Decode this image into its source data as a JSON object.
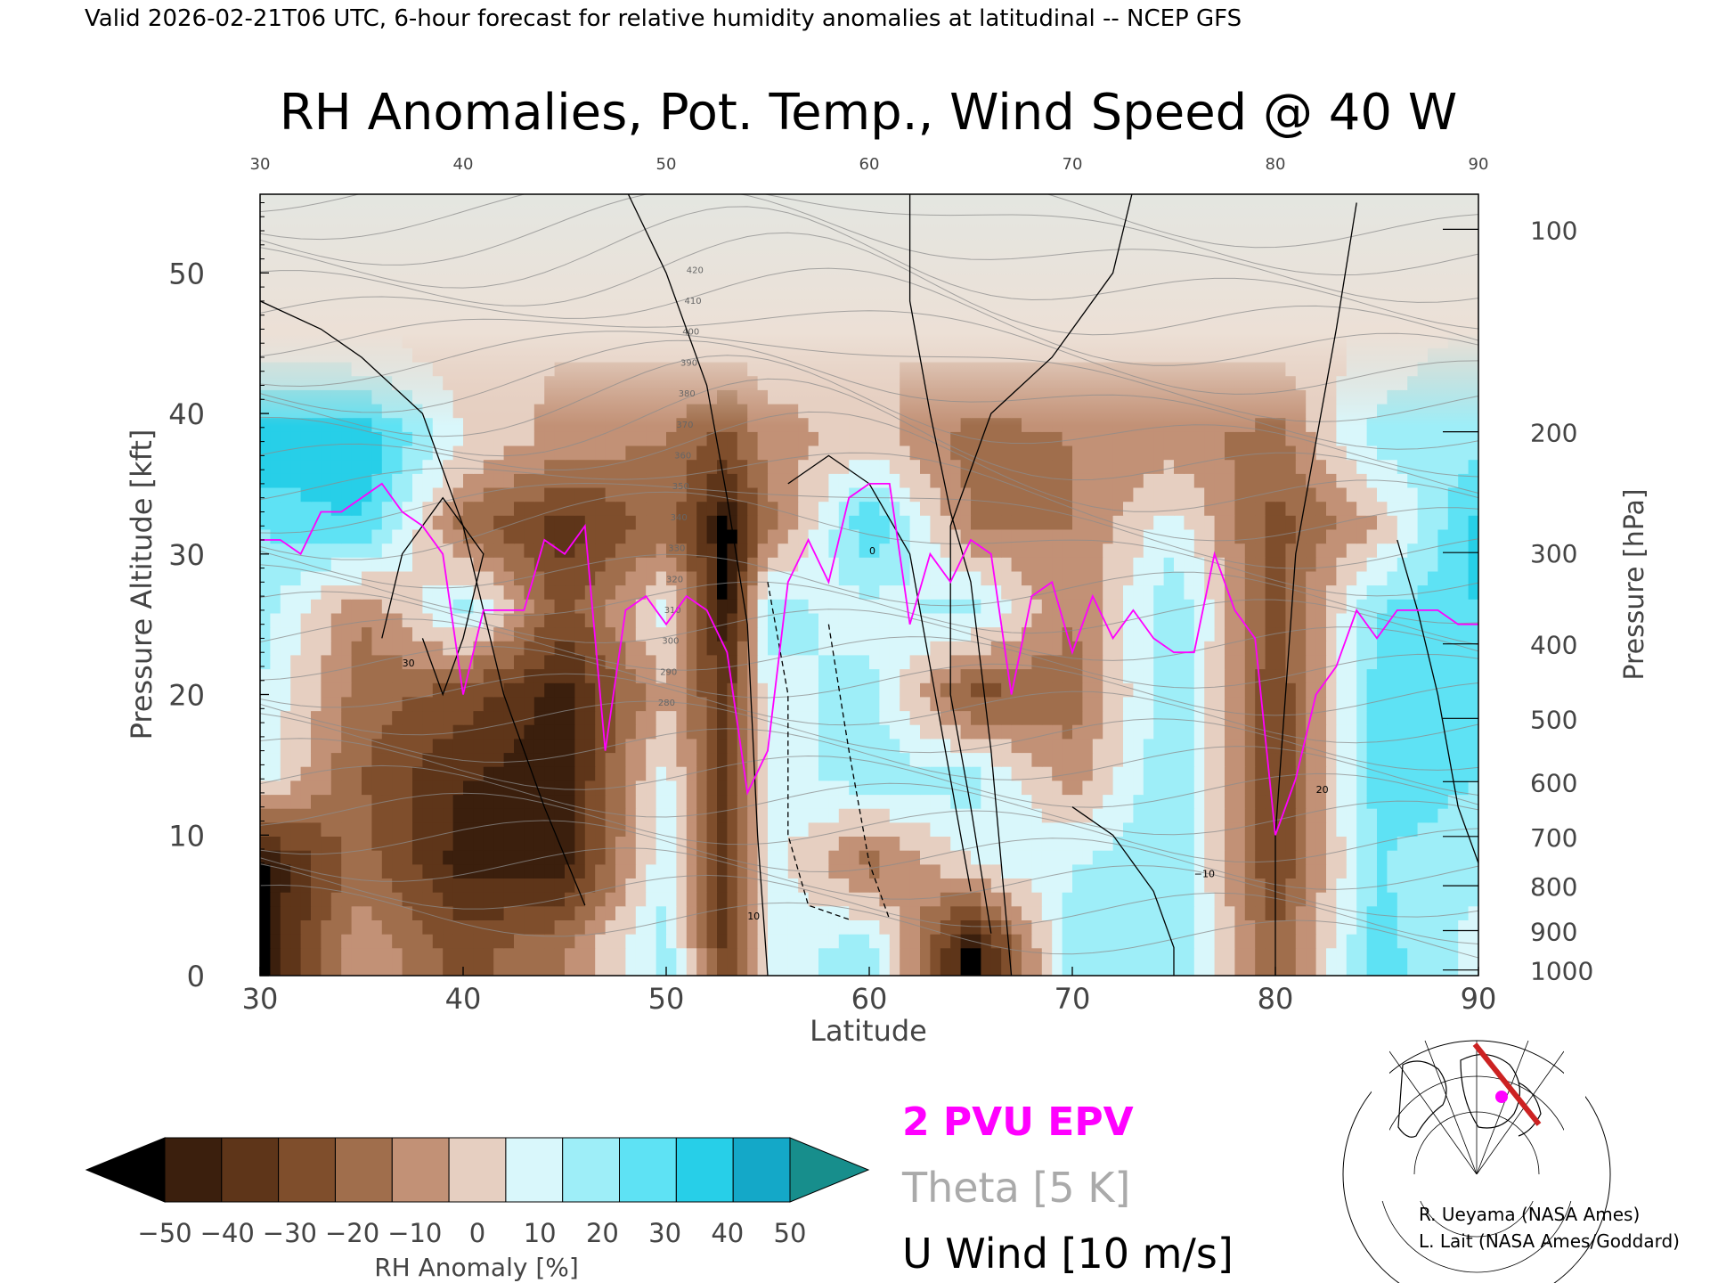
{
  "header": {
    "valid_line": "Valid 2026-02-21T06 UTC, 6-hour forecast for relative humidity anomalies at latitudinal -- NCEP GFS",
    "title": "RH Anomalies, Pot. Temp., Wind Speed @ 40 W"
  },
  "chart_data": {
    "type": "heatmap",
    "title": "RH Anomalies, Pot. Temp., Wind Speed @ 40 W",
    "xlabel": "Latitude",
    "ylabel": "Pressure Altitude [kft]",
    "y2label": "Pressure [hPa]",
    "xlim": [
      30,
      90
    ],
    "ylim": [
      0,
      55.6
    ],
    "x_ticks": [
      30,
      40,
      50,
      60,
      70,
      80,
      90
    ],
    "top_ticks": [
      "30",
      "40",
      "50",
      "60",
      "70",
      "80",
      "90"
    ],
    "y_ticks": [
      0,
      10,
      20,
      30,
      40,
      50
    ],
    "pressure_ticks": [
      {
        "label": "100",
        "kft": 53.1
      },
      {
        "label": "200",
        "kft": 38.7
      },
      {
        "label": "300",
        "kft": 30.1
      },
      {
        "label": "400",
        "kft": 23.6
      },
      {
        "label": "500",
        "kft": 18.3
      },
      {
        "label": "600",
        "kft": 13.8
      },
      {
        "label": "700",
        "kft": 9.9
      },
      {
        "label": "800",
        "kft": 6.4
      },
      {
        "label": "900",
        "kft": 3.2
      },
      {
        "label": "1000",
        "kft": 0.4
      }
    ],
    "colorbar": {
      "label": "RH Anomaly [%]",
      "ticks": [
        "−50",
        "−40",
        "−30",
        "−20",
        "−10",
        "0",
        "10",
        "20",
        "30",
        "40",
        "50"
      ],
      "colors": [
        "#3b1f0d",
        "#5e3519",
        "#7f4e2c",
        "#a06e4c",
        "#c29176",
        "#e6cfc1",
        "#d9f7fb",
        "#9eeef8",
        "#5ee2f4",
        "#27cfe8",
        "#14a8c8"
      ],
      "under_color": "#000000",
      "over_color": "#178e8c"
    },
    "legend": [
      {
        "label": "2 PVU EPV",
        "color": "#ff00ff"
      },
      {
        "label": "Theta [5 K]",
        "color": "#999999"
      },
      {
        "label": "U Wind [10 m/s]",
        "color": "#000000"
      }
    ],
    "rh_field": {
      "lats": [
        30,
        35,
        40,
        45,
        50,
        53,
        55,
        60,
        65,
        70,
        75,
        80,
        85,
        90
      ],
      "levels_kft": [
        2,
        8,
        14,
        20,
        26,
        32,
        38,
        44,
        50
      ],
      "rh_anomaly": [
        [
          -55,
          -5,
          -30,
          -15,
          20,
          -40,
          10,
          20,
          -55,
          20,
          25,
          -25,
          30,
          10
        ],
        [
          -55,
          -20,
          -50,
          -50,
          15,
          -40,
          10,
          -20,
          5,
          15,
          25,
          -35,
          25,
          20
        ],
        [
          10,
          -25,
          -45,
          -50,
          10,
          -40,
          10,
          20,
          20,
          -10,
          25,
          -35,
          30,
          25
        ],
        [
          15,
          -20,
          -30,
          -50,
          -5,
          -40,
          10,
          20,
          -30,
          -20,
          25,
          -35,
          30,
          30
        ],
        [
          20,
          -15,
          20,
          -30,
          10,
          -55,
          20,
          10,
          20,
          -15,
          25,
          -30,
          25,
          35
        ],
        [
          25,
          35,
          -20,
          -40,
          -20,
          -55,
          -20,
          35,
          -15,
          -15,
          10,
          -30,
          -5,
          40
        ],
        [
          45,
          45,
          5,
          -10,
          -15,
          -30,
          -10,
          0,
          -20,
          -15,
          -10,
          -20,
          20,
          20
        ],
        [
          15,
          10,
          0,
          -5,
          -5,
          -5,
          0,
          -5,
          -5,
          -5,
          -5,
          -5,
          10,
          20
        ],
        [
          0,
          0,
          0,
          0,
          0,
          0,
          0,
          0,
          0,
          0,
          0,
          0,
          5,
          5
        ]
      ]
    },
    "theta_labels": [
      "420",
      "410",
      "400",
      "390",
      "380",
      "370",
      "360",
      "350",
      "340",
      "330",
      "320",
      "310",
      "300",
      "290",
      "280"
    ],
    "wind_labels": [
      "30",
      "10",
      "0",
      "−10",
      "20"
    ],
    "epv_2pvu": {
      "lat": [
        30,
        31,
        32,
        33,
        34,
        35,
        36,
        37,
        38,
        39,
        40,
        41,
        42,
        43,
        44,
        45,
        46,
        47,
        48,
        49,
        50,
        51,
        52,
        53,
        54,
        55,
        56,
        57,
        58,
        59,
        60,
        61,
        62,
        63,
        64,
        65,
        66,
        67,
        68,
        69,
        70,
        71,
        72,
        73,
        74,
        75,
        76,
        77,
        78,
        79,
        80,
        81,
        82,
        83,
        84,
        85,
        86,
        87,
        88,
        89,
        90
      ],
      "kft": [
        31,
        31,
        30,
        33,
        33,
        34,
        35,
        33,
        32,
        30,
        20,
        26,
        26,
        26,
        31,
        30,
        32,
        16,
        26,
        27,
        25,
        27,
        26,
        23,
        13,
        16,
        28,
        31,
        28,
        34,
        35,
        35,
        25,
        30,
        28,
        31,
        30,
        20,
        27,
        28,
        23,
        27,
        24,
        26,
        24,
        23,
        23,
        30,
        26,
        24,
        10,
        14,
        20,
        22,
        26,
        24,
        26,
        26,
        26,
        25,
        25
      ]
    }
  }
}
